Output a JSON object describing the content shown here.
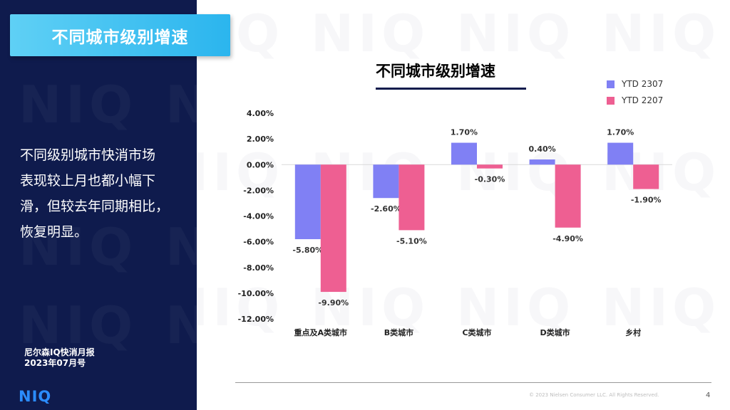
{
  "slide": {
    "header_title": "不同城市级别增速",
    "summary_lines": [
      "不同级别城市快消市场",
      "表现较上月也都小幅下",
      "滑，但较去年同期相比，",
      "恢复明显。"
    ],
    "report_name_line1": "尼尔森IQ快消月报",
    "report_name_line2": "2023年07月号",
    "logo_text": "NIQ",
    "watermark_text": "NIQ",
    "copyright": "© 2023 Nielsen Consumer LLC. All Rights Reserved.",
    "page_number": "4"
  },
  "colors": {
    "panel_bg": "#0f1b4d",
    "title_box": "#2bb5ee",
    "series_2307": "#8080f4",
    "series_2207": "#ee5f92",
    "logo": "#2b8cff"
  },
  "chart_data": {
    "type": "bar",
    "title": "不同城市级别增速",
    "categories": [
      "重点及A类城市",
      "B类城市",
      "C类城市",
      "D类城市",
      "乡村"
    ],
    "series": [
      {
        "name": "YTD 2307",
        "values": [
          -5.8,
          -2.6,
          1.7,
          0.4,
          1.7
        ],
        "labels": [
          "-5.80%",
          "-2.60%",
          "1.70%",
          "0.40%",
          "1.70%"
        ]
      },
      {
        "name": "YTD 2207",
        "values": [
          -9.9,
          -5.1,
          -0.3,
          -4.9,
          -1.9
        ],
        "labels": [
          "-9.90%",
          "-5.10%",
          "-0.30%",
          "-4.90%",
          "-1.90%"
        ]
      }
    ],
    "y_ticks": [
      "4.00%",
      "2.00%",
      "0.00%",
      "-2.00%",
      "-4.00%",
      "-6.00%",
      "-8.00%",
      "-10.00%",
      "-12.00%"
    ],
    "ylim": [
      -12,
      4
    ],
    "grid": false,
    "legend_position": "top-right"
  }
}
